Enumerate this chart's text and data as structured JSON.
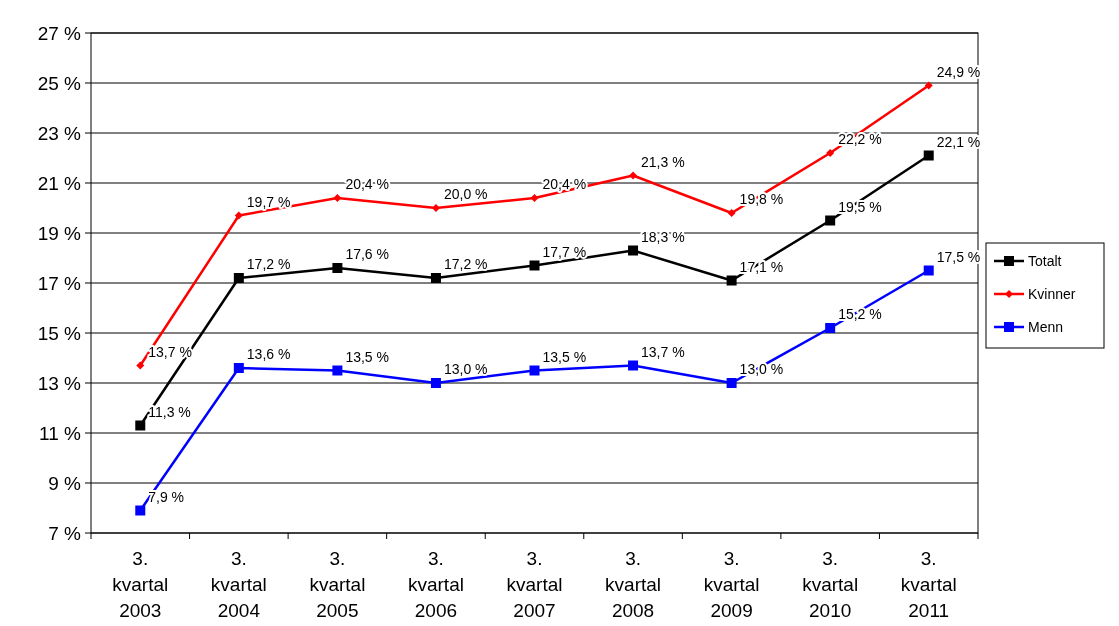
{
  "chart_data": {
    "type": "line",
    "categories": [
      "3. kvartal 2003",
      "3. kvartal 2004",
      "3. kvartal 2005",
      "3. kvartal 2006",
      "3. kvartal 2007",
      "3. kvartal 2008",
      "3. kvartal 2009",
      "3. kvartal 2010",
      "3. kvartal 2011"
    ],
    "series": [
      {
        "name": "Totalt",
        "color": "#000000",
        "marker": "square",
        "values": [
          11.3,
          17.2,
          17.6,
          17.2,
          17.7,
          18.3,
          17.1,
          19.5,
          22.1
        ],
        "value_labels": [
          "11,3 %",
          "17,2 %",
          "17,6 %",
          "17,2 %",
          "17,7 %",
          "18,3 %",
          "17,1 %",
          "19,5 %",
          "22,1 %"
        ]
      },
      {
        "name": "Kvinner",
        "color": "#ff0000",
        "marker": "diamond",
        "values": [
          13.7,
          19.7,
          20.4,
          20.0,
          20.4,
          21.3,
          19.8,
          22.2,
          24.9
        ],
        "value_labels": [
          "13,7 %",
          "19,7 %",
          "20,4 %",
          "20,0 %",
          "20,4 %",
          "21,3 %",
          "19,8 %",
          "22,2 %",
          "24,9 %"
        ]
      },
      {
        "name": "Menn",
        "color": "#0000ff",
        "marker": "square",
        "values": [
          7.9,
          13.6,
          13.5,
          13.0,
          13.5,
          13.7,
          13.0,
          15.2,
          17.5
        ],
        "value_labels": [
          "7,9 %",
          "13,6 %",
          "13,5 %",
          "13,0 %",
          "13,5 %",
          "13,7 %",
          "13,0 %",
          "15,2 %",
          "17,5 %"
        ]
      }
    ],
    "ylim": [
      7,
      27
    ],
    "yticks": [
      {
        "value": 7,
        "label": "7 %"
      },
      {
        "value": 9,
        "label": "9 %"
      },
      {
        "value": 11,
        "label": "11 %"
      },
      {
        "value": 13,
        "label": "13 %"
      },
      {
        "value": 15,
        "label": "15 %"
      },
      {
        "value": 17,
        "label": "17 %"
      },
      {
        "value": 19,
        "label": "19 %"
      },
      {
        "value": 21,
        "label": "21 %"
      },
      {
        "value": 23,
        "label": "23 %"
      },
      {
        "value": 25,
        "label": "25 %"
      },
      {
        "value": 27,
        "label": "27 %"
      }
    ],
    "grid": "y",
    "legend": "right",
    "line_style": "solid"
  }
}
